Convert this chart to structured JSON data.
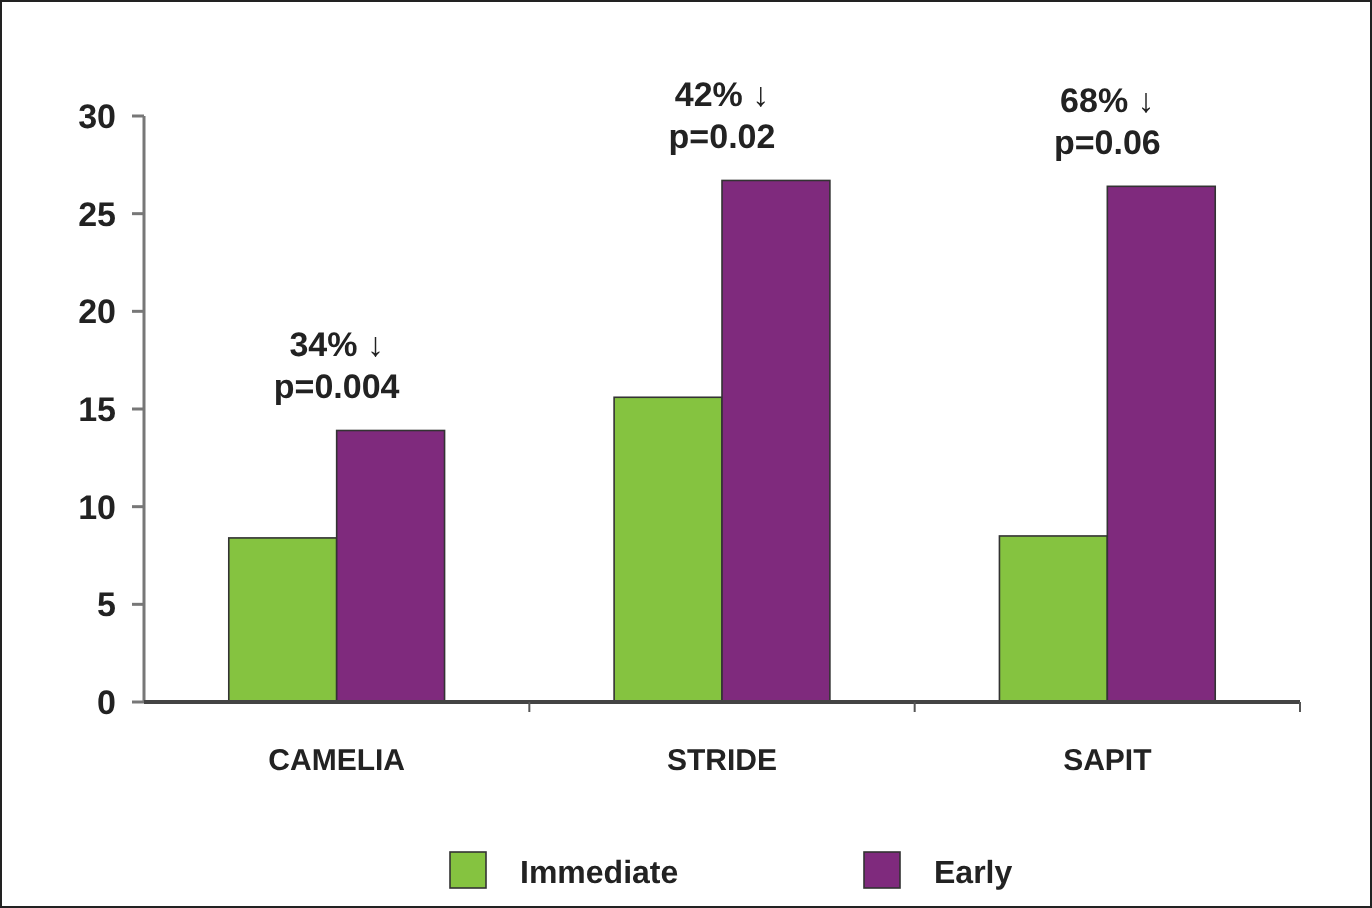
{
  "chart_data": {
    "type": "bar",
    "categories": [
      "CAMELIA",
      "STRIDE",
      "SAPIT"
    ],
    "series": [
      {
        "name": "Immediate",
        "color": "#85c340",
        "values": [
          8.4,
          15.6,
          8.5
        ]
      },
      {
        "name": "Early",
        "color": "#7f2a7d",
        "values": [
          13.9,
          26.7,
          26.4
        ]
      }
    ],
    "ylim": [
      0,
      30
    ],
    "yticks": [
      0,
      5,
      10,
      15,
      20,
      25,
      30
    ],
    "grid": false,
    "legend": "bottom",
    "annotations": [
      {
        "text": "34% ↓\np=0.004",
        "x": "CAMELIA",
        "y": 13.9
      },
      {
        "text": "42% ↓\np=0.02",
        "x": "STRIDE",
        "y": 26.7
      },
      {
        "text": "68% ↓\np=0.06",
        "x": "SAPIT",
        "y": 26.4
      }
    ]
  }
}
